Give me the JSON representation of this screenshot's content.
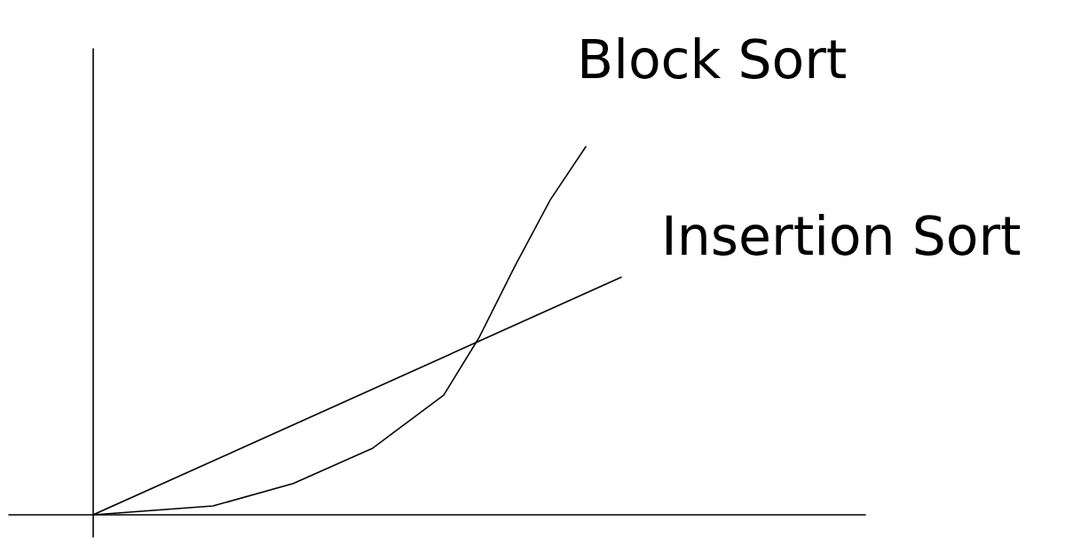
{
  "chart_data": {
    "type": "line",
    "tick_labels": false,
    "grid": false,
    "xlim": [
      0,
      100
    ],
    "ylim": [
      0,
      100
    ],
    "series": [
      {
        "name": "Block Sort",
        "color": "#000000",
        "x": [
          0,
          15.5,
          25.9,
          36.2,
          45.4,
          50,
          54.6,
          59.2,
          63.8
        ],
        "values": [
          0,
          1.9,
          6.7,
          14.3,
          25.7,
          38.1,
          53.3,
          67.6,
          79
        ]
      },
      {
        "name": "Insertion Sort",
        "color": "#000000",
        "x": [
          0,
          20,
          40,
          50,
          68.4
        ],
        "values": [
          0,
          14.9,
          29.8,
          37.3,
          51
        ]
      }
    ]
  }
}
